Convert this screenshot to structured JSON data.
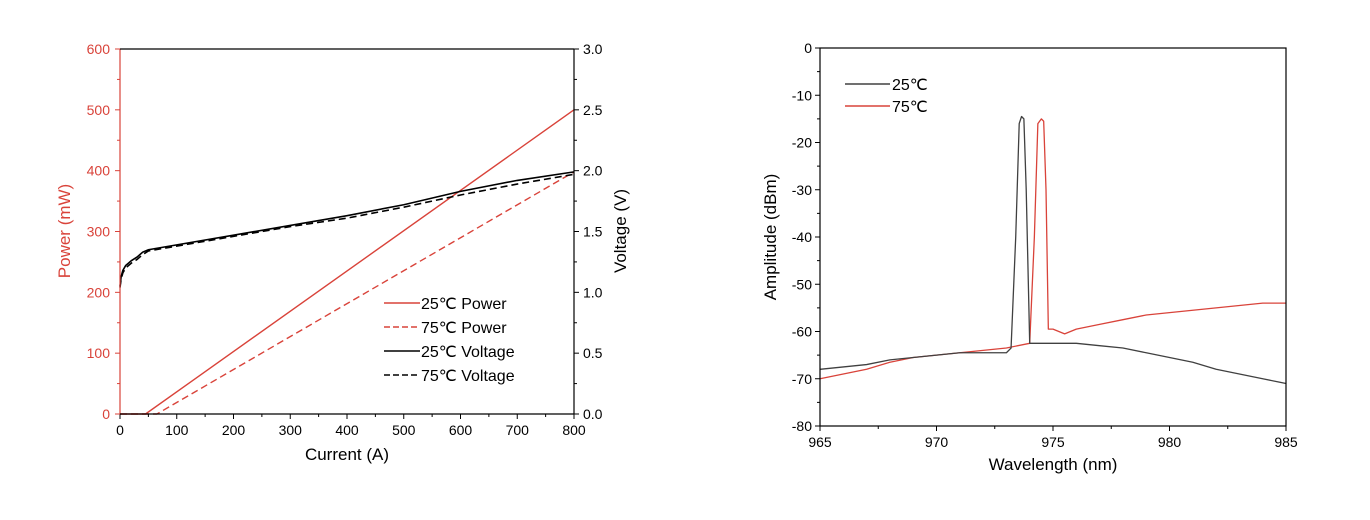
{
  "colors": {
    "red": "#d9433a",
    "black": "#000000",
    "grey": "#404040"
  },
  "chart_data": [
    {
      "type": "line",
      "xlabel": "Current (A)",
      "ylabel_left": "Power (mW)",
      "ylabel_right": "Voltage (V)",
      "xlim": [
        0,
        800
      ],
      "ylim_left": [
        0,
        600
      ],
      "ylim_right": [
        0,
        3.0
      ],
      "x_ticks": [
        "0",
        "100",
        "200",
        "300",
        "400",
        "500",
        "600",
        "700",
        "800"
      ],
      "y_left_ticks": [
        "0",
        "100",
        "200",
        "300",
        "400",
        "500",
        "600"
      ],
      "y_right_ticks": [
        "0.0",
        "0.5",
        "1.0",
        "1.5",
        "2.0",
        "2.5",
        "3.0"
      ],
      "legend_position": "bottom-right",
      "series": [
        {
          "name": "25℃ Power",
          "axis": "left",
          "style": "solid",
          "color": "red",
          "x": [
            0,
            45,
            800
          ],
          "y": [
            0,
            0,
            500
          ]
        },
        {
          "name": "75℃ Power",
          "axis": "left",
          "style": "dashed",
          "color": "red",
          "x": [
            0,
            65,
            800
          ],
          "y": [
            0,
            0,
            398
          ]
        },
        {
          "name": "25℃ Voltage",
          "axis": "right",
          "style": "solid",
          "color": "black",
          "x": [
            0,
            2,
            5,
            10,
            20,
            30,
            40,
            50,
            100,
            200,
            300,
            400,
            500,
            600,
            700,
            800
          ],
          "y": [
            1.05,
            1.13,
            1.18,
            1.22,
            1.26,
            1.29,
            1.33,
            1.35,
            1.39,
            1.47,
            1.55,
            1.63,
            1.72,
            1.83,
            1.92,
            1.99
          ]
        },
        {
          "name": "75℃ Voltage",
          "axis": "right",
          "style": "dashed",
          "color": "black",
          "x": [
            0,
            2,
            5,
            10,
            20,
            30,
            40,
            50,
            100,
            200,
            300,
            400,
            500,
            600,
            700,
            800
          ],
          "y": [
            1.04,
            1.11,
            1.16,
            1.2,
            1.24,
            1.27,
            1.31,
            1.34,
            1.38,
            1.46,
            1.54,
            1.61,
            1.7,
            1.8,
            1.89,
            1.97
          ]
        }
      ]
    },
    {
      "type": "line",
      "xlabel": "Wavelength (nm)",
      "ylabel": "Amplitude (dBm)",
      "xlim": [
        965,
        985
      ],
      "ylim": [
        -80,
        0
      ],
      "x_ticks": [
        "965",
        "970",
        "975",
        "980",
        "985"
      ],
      "y_ticks": [
        "0",
        "-10",
        "-20",
        "-30",
        "-40",
        "-50",
        "-60",
        "-70",
        "-80"
      ],
      "legend_position": "top-left",
      "series": [
        {
          "name": "25℃",
          "color": "grey",
          "x": [
            965,
            966,
            967,
            968,
            969,
            970,
            971,
            972,
            973,
            973.2,
            973.4,
            973.55,
            973.65,
            973.75,
            973.85,
            974.0,
            974.2,
            975,
            976,
            977,
            978,
            979,
            980,
            981,
            982,
            983,
            984,
            985
          ],
          "y": [
            -68,
            -67.5,
            -67,
            -66,
            -65.5,
            -65,
            -64.5,
            -64.5,
            -64.5,
            -63.5,
            -40,
            -16,
            -14.5,
            -15,
            -30,
            -62.5,
            -62.5,
            -62.5,
            -62.5,
            -63,
            -63.5,
            -64.5,
            -65.5,
            -66.5,
            -68,
            -69,
            -70,
            -71
          ]
        },
        {
          "name": "75℃",
          "color": "red",
          "x": [
            965,
            966,
            967,
            968,
            969,
            970,
            971,
            972,
            973,
            974.0,
            974.2,
            974.35,
            974.5,
            974.6,
            974.7,
            974.8,
            975,
            975.5,
            976,
            977,
            978,
            979,
            980,
            981,
            982,
            983,
            984,
            985
          ],
          "y": [
            -70,
            -69,
            -68,
            -66.5,
            -65.5,
            -65,
            -64.5,
            -64,
            -63.5,
            -62.5,
            -40,
            -16,
            -15,
            -15.5,
            -30,
            -59.5,
            -59.5,
            -60.5,
            -59.5,
            -58.5,
            -57.5,
            -56.5,
            -56,
            -55.5,
            -55,
            -54.5,
            -54,
            -54
          ]
        }
      ]
    }
  ]
}
